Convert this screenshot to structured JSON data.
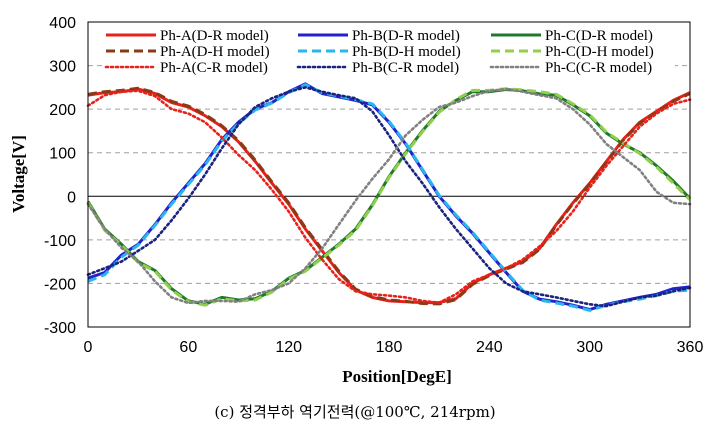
{
  "chart_data": {
    "type": "line",
    "xlabel": "Position[DegE]",
    "ylabel": "Voltage[V]",
    "xlim": [
      0,
      360
    ],
    "ylim": [
      -300,
      400
    ],
    "xticks": [
      0,
      60,
      120,
      180,
      240,
      300,
      360
    ],
    "yticks": [
      -300,
      -200,
      -100,
      0,
      100,
      200,
      300,
      400
    ],
    "grid": "horizontal dashed",
    "legend_position": "top",
    "legend_columns": 3,
    "caption": "(c) 정격부하 역기전력(@100℃, 214rpm)",
    "x": [
      0,
      10,
      20,
      30,
      40,
      50,
      60,
      70,
      80,
      90,
      100,
      110,
      120,
      130,
      140,
      150,
      160,
      170,
      180,
      190,
      200,
      210,
      220,
      230,
      240,
      250,
      260,
      270,
      280,
      290,
      300,
      310,
      320,
      330,
      340,
      350,
      360
    ],
    "series": [
      {
        "name": "Ph-A(D-R model)",
        "color": "#e8211a",
        "dash": "solid",
        "values": [
          232,
          238,
          240,
          246,
          236,
          215,
          205,
          185,
          160,
          125,
          80,
          30,
          -18,
          -75,
          -125,
          -175,
          -215,
          -232,
          -240,
          -242,
          -244,
          -244,
          -235,
          -200,
          -180,
          -165,
          -150,
          -120,
          -65,
          -15,
          30,
          80,
          130,
          170,
          195,
          220,
          238
        ]
      },
      {
        "name": "Ph-B(D-R model)",
        "color": "#2222cc",
        "dash": "solid",
        "values": [
          -188,
          -175,
          -135,
          -110,
          -65,
          -15,
          30,
          75,
          130,
          170,
          200,
          215,
          240,
          258,
          236,
          228,
          220,
          210,
          170,
          120,
          60,
          0,
          -45,
          -85,
          -130,
          -175,
          -218,
          -236,
          -242,
          -250,
          -260,
          -248,
          -240,
          -232,
          -225,
          -212,
          -208
        ]
      },
      {
        "name": "Ph-C(D-R model)",
        "color": "#1f7a2e",
        "dash": "solid",
        "values": [
          -12,
          -75,
          -110,
          -150,
          -170,
          -212,
          -240,
          -248,
          -232,
          -238,
          -235,
          -218,
          -188,
          -170,
          -140,
          -110,
          -75,
          -20,
          45,
          100,
          150,
          195,
          220,
          240,
          240,
          245,
          242,
          235,
          232,
          210,
          185,
          145,
          120,
          100,
          70,
          35,
          -5
        ]
      },
      {
        "name": "Ph-A(D-H model)",
        "color": "#8b3a16",
        "dash": "dash",
        "values": [
          234,
          240,
          243,
          248,
          238,
          218,
          207,
          188,
          162,
          128,
          83,
          33,
          -15,
          -72,
          -122,
          -172,
          -213,
          -230,
          -238,
          -241,
          -246,
          -247,
          -237,
          -202,
          -182,
          -167,
          -152,
          -122,
          -67,
          -17,
          28,
          78,
          128,
          168,
          193,
          218,
          236
        ]
      },
      {
        "name": "Ph-B(D-H model)",
        "color": "#29b6ee",
        "dash": "dash",
        "values": [
          -195,
          -180,
          -140,
          -112,
          -67,
          -18,
          27,
          72,
          127,
          167,
          198,
          214,
          238,
          256,
          238,
          230,
          222,
          212,
          172,
          122,
          62,
          2,
          -43,
          -83,
          -128,
          -173,
          -216,
          -238,
          -245,
          -252,
          -262,
          -250,
          -242,
          -236,
          -228,
          -218,
          -215
        ]
      },
      {
        "name": "Ph-C(D-H model)",
        "color": "#92cf4a",
        "dash": "dash",
        "values": [
          -15,
          -78,
          -112,
          -152,
          -172,
          -215,
          -242,
          -250,
          -235,
          -240,
          -238,
          -220,
          -190,
          -172,
          -142,
          -112,
          -78,
          -22,
          43,
          98,
          148,
          193,
          222,
          243,
          243,
          247,
          244,
          240,
          234,
          212,
          187,
          147,
          122,
          98,
          67,
          30,
          -8
        ]
      },
      {
        "name": "Ph-A(C-R model)",
        "color": "#e8211a",
        "dash": "dot",
        "values": [
          208,
          232,
          240,
          242,
          230,
          200,
          190,
          170,
          135,
          95,
          60,
          15,
          -35,
          -95,
          -145,
          -190,
          -218,
          -225,
          -228,
          -232,
          -240,
          -244,
          -225,
          -195,
          -180,
          -165,
          -145,
          -115,
          -80,
          -35,
          20,
          70,
          115,
          160,
          190,
          212,
          222
        ]
      },
      {
        "name": "Ph-B(C-R model)",
        "color": "#1a237e",
        "dash": "dot",
        "values": [
          -180,
          -165,
          -150,
          -125,
          -100,
          -55,
          -5,
          50,
          110,
          165,
          205,
          225,
          240,
          250,
          240,
          232,
          225,
          195,
          140,
          80,
          30,
          -25,
          -75,
          -120,
          -165,
          -200,
          -218,
          -225,
          -232,
          -240,
          -248,
          -252,
          -242,
          -232,
          -228,
          -218,
          -210
        ]
      },
      {
        "name": "Ph-C(C-R model)",
        "color": "#808080",
        "dash": "dot",
        "values": [
          -18,
          -75,
          -118,
          -150,
          -195,
          -232,
          -245,
          -240,
          -240,
          -242,
          -225,
          -215,
          -200,
          -165,
          -120,
          -65,
          -10,
          40,
          85,
          140,
          175,
          205,
          215,
          230,
          242,
          246,
          240,
          232,
          225,
          200,
          165,
          120,
          90,
          60,
          10,
          -15,
          -18
        ]
      }
    ]
  }
}
